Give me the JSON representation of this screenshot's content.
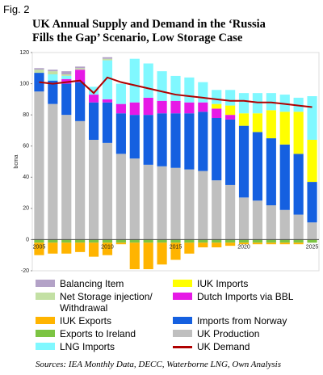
{
  "figure_label": "Fig. 2",
  "chart_data": {
    "type": "bar",
    "title": "UK Annual Supply and Demand in the ‘Russia Fills the Gap’ Scenario, Low Storage Case",
    "y_label": "bcma",
    "source": "Sources: IEA Monthly Data, DECC, Waterborne LNG, Own Analysis",
    "categories": [
      "2005",
      null,
      null,
      null,
      null,
      "2010",
      null,
      null,
      null,
      null,
      "2015",
      null,
      null,
      null,
      null,
      "2020",
      null,
      null,
      null,
      null,
      "2025"
    ],
    "ylim": [
      -20,
      120
    ],
    "yticks": [
      -20,
      0,
      20,
      40,
      60,
      80,
      100,
      120
    ],
    "series": [
      {
        "name": "Balancing Item",
        "color": "#b3a2c7",
        "values": [
          1,
          1,
          2,
          1,
          0,
          1,
          0,
          0,
          0,
          0,
          0,
          0,
          0,
          0,
          0,
          0,
          0,
          0,
          0,
          0,
          0
        ]
      },
      {
        "name": "Net Storage injection/ Withdrawal",
        "color": "#c3e0a4",
        "values": [
          2,
          2,
          1,
          1,
          0,
          1,
          0,
          0,
          0,
          0,
          0,
          0,
          0,
          0,
          0,
          0,
          0,
          0,
          0,
          0,
          0
        ]
      },
      {
        "name": "IUK Exports",
        "color": "#ffb400",
        "values": [
          -8,
          -7,
          -7,
          -6,
          -9,
          -8,
          -1,
          -17,
          -17,
          -14,
          -11,
          -7,
          -3,
          -3,
          -2,
          -1,
          -1,
          -1,
          -1,
          -1,
          0
        ]
      },
      {
        "name": "Exports to Ireland",
        "color": "#7cc443",
        "values": [
          -2,
          -2,
          -2,
          -2,
          -2,
          -2,
          -2,
          -2,
          -2,
          -2,
          -2,
          -2,
          -2,
          -2,
          -2,
          -2,
          -2,
          -2,
          -2,
          -2,
          -2
        ]
      },
      {
        "name": "LNG Imports",
        "color": "#80f8ff",
        "values": [
          0,
          4,
          2,
          0,
          5,
          25,
          13,
          28,
          22,
          19,
          16,
          16,
          13,
          9,
          10,
          13,
          13,
          11,
          11,
          9,
          28
        ]
      },
      {
        "name": "IUK Imports",
        "color": "#ffff00",
        "values": [
          0,
          0,
          0,
          0,
          0,
          0,
          0,
          0,
          0,
          0,
          0,
          0,
          0,
          3,
          6,
          8,
          12,
          18,
          21,
          27,
          27
        ]
      },
      {
        "name": "Dutch Imports via BBL",
        "color": "#e619e6",
        "values": [
          0,
          0,
          3,
          8,
          5,
          2,
          6,
          8,
          11,
          8,
          8,
          7,
          6,
          6,
          3,
          0,
          0,
          0,
          0,
          0,
          0
        ]
      },
      {
        "name": "Imports from Norway",
        "color": "#1560e0",
        "values": [
          12,
          15,
          20,
          25,
          24,
          26,
          26,
          28,
          32,
          34,
          35,
          36,
          38,
          40,
          42,
          46,
          44,
          43,
          42,
          39,
          26
        ]
      },
      {
        "name": "UK Production",
        "color": "#bfbfbf",
        "values": [
          95,
          87,
          80,
          76,
          64,
          62,
          55,
          52,
          48,
          47,
          46,
          45,
          44,
          38,
          35,
          27,
          25,
          22,
          19,
          16,
          11
        ]
      },
      {
        "name": "UK Demand",
        "type": "line",
        "color": "#b00000",
        "values": [
          101,
          100,
          101,
          102,
          94,
          104,
          101,
          99,
          97,
          95,
          93,
          92,
          91,
          90,
          89,
          89,
          88,
          88,
          87,
          86,
          85
        ]
      }
    ]
  }
}
